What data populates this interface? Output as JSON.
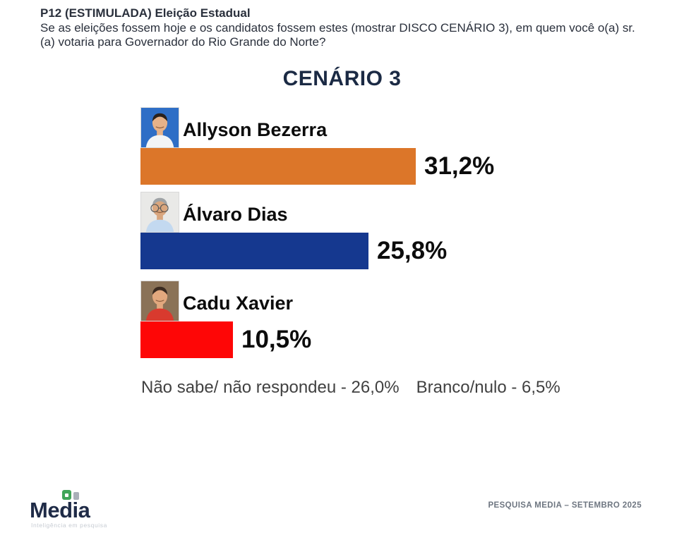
{
  "header": {
    "title": "P12 (ESTIMULADA) Eleição Estadual",
    "question": "Se as eleições fossem hoje e os candidatos fossem estes (mostrar DISCO CENÁRIO 3), em quem você o(a) sr.(a) votaria para Governador do Rio Grande do Norte?"
  },
  "chart_data": {
    "type": "bar",
    "orientation": "horizontal",
    "title": "CENÁRIO 3",
    "categories": [
      "Allyson Bezerra",
      "Álvaro Dias",
      "Cadu Xavier"
    ],
    "values": [
      31.2,
      25.8,
      10.5
    ],
    "value_labels": [
      "31,2%",
      "25,8%",
      "10,5%"
    ],
    "bar_colors": [
      "#DC7629",
      "#15388F",
      "#FE0606"
    ],
    "xlabel": "",
    "ylabel": "",
    "xlim": [
      0,
      35
    ],
    "grid": false,
    "axes_hidden": true,
    "value_label_position": "right-of-bar",
    "photos": [
      {
        "bg": "#2E6EC6",
        "shirt": "#F2F4F6",
        "skin": "#E6B289",
        "hair": "#2A211C",
        "glasses": false
      },
      {
        "bg": "#E9E9E7",
        "shirt": "#C3D9F0",
        "skin": "#D9A67E",
        "hair": "#9FA3A6",
        "glasses": true
      },
      {
        "bg": "#8A7257",
        "shirt": "#D93A2E",
        "skin": "#E2A87E",
        "hair": "#3A2A20",
        "glasses": false
      }
    ],
    "notes": [
      {
        "label": "Não sabe/ não respondeu",
        "value": 26.0,
        "text": "Não sabe/ não respondeu - 26,0%"
      },
      {
        "label": "Branco/nulo",
        "value": 6.5,
        "text": "Branco/nulo - 6,5%"
      }
    ]
  },
  "footer": {
    "logo_text": "Media",
    "logo_tagline": "Inteligência em pesquisa",
    "source_label": "PESQUISA MEDIA – SETEMBRO 2025"
  }
}
